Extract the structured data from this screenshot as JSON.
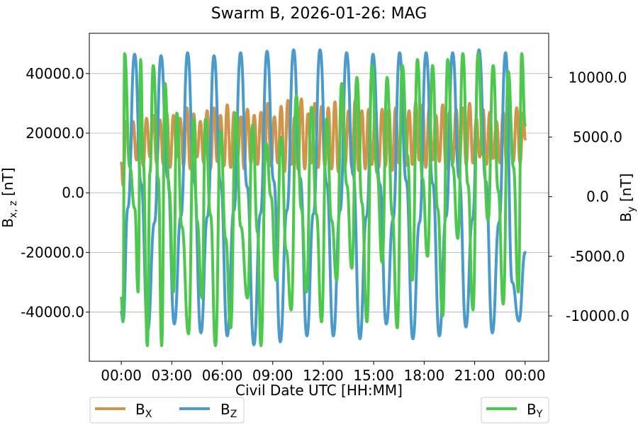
{
  "chart_data": {
    "type": "line",
    "title": "Swarm B, 2026-01-26: MAG",
    "xlabel": "Civil Date UTC [HH:MM]",
    "ylabel_left": {
      "main": "B",
      "sub": "x, z",
      "unit": " [nT]"
    },
    "ylabel_right": {
      "main": "B",
      "sub": "y",
      "unit": " [nT]"
    },
    "x_range_hours": [
      -1.9,
      25.4
    ],
    "x_ticks": [
      {
        "value": 0,
        "label": "00:00"
      },
      {
        "value": 3,
        "label": "03:00"
      },
      {
        "value": 6,
        "label": "06:00"
      },
      {
        "value": 9,
        "label": "09:00"
      },
      {
        "value": 12,
        "label": "12:00"
      },
      {
        "value": 15,
        "label": "15:00"
      },
      {
        "value": 18,
        "label": "18:00"
      },
      {
        "value": 21,
        "label": "21:00"
      },
      {
        "value": 24,
        "label": "00:00"
      }
    ],
    "ylim_left": [
      -56500,
      53500
    ],
    "y_ticks_left": [
      {
        "value": 40000,
        "label": "40000.0"
      },
      {
        "value": 20000,
        "label": "20000.0"
      },
      {
        "value": 0,
        "label": "0.0"
      },
      {
        "value": -20000,
        "label": "-20000.0"
      },
      {
        "value": -40000,
        "label": "-40000.0"
      }
    ],
    "ylim_right": [
      -13800,
      13700
    ],
    "y_ticks_right": [
      {
        "value": 10000,
        "label": "10000.0"
      },
      {
        "value": 5000,
        "label": "5000.0"
      },
      {
        "value": 0,
        "label": "0.0"
      },
      {
        "value": -5000,
        "label": "-5000.0"
      },
      {
        "value": -10000,
        "label": "-10000.0"
      }
    ],
    "grid": "horizontal",
    "orbit_period_hours": 1.575,
    "series": [
      {
        "name": "B_X",
        "label_main": "B",
        "label_sub": "X",
        "axis": "left",
        "color": "#d0944a",
        "note": "oscillates twice per orbit between roughly 8000 and 30000 nT with dips toward 0 nT",
        "x": [
          0,
          0.1,
          0.3,
          0.5,
          0.7,
          0.9,
          1.1,
          1.3,
          1.5,
          1.7,
          1.9,
          2.1,
          2.3,
          2.5,
          2.7,
          2.9,
          3.1,
          3.3,
          3.5,
          3.7,
          3.9,
          4.1,
          4.3,
          4.5,
          4.7,
          4.9,
          5.1,
          5.3,
          5.5,
          5.7,
          5.9,
          6.1,
          6.3,
          6.5,
          6.7,
          6.9,
          7.1,
          7.3,
          7.5,
          7.7,
          7.9,
          8.1,
          8.3,
          8.5,
          8.7,
          8.9,
          9.1,
          9.3,
          9.5,
          9.7,
          9.9,
          10.1,
          10.3,
          10.5,
          10.7,
          10.9,
          11.1,
          11.3,
          11.5,
          11.7,
          11.9,
          12.1,
          12.3,
          12.5,
          12.7,
          12.9,
          13.1,
          13.3,
          13.5,
          13.7,
          13.9,
          14.1,
          14.3,
          14.5,
          14.7,
          14.9,
          15.1,
          15.3,
          15.5,
          15.7,
          15.9,
          16.1,
          16.3,
          16.5,
          16.7,
          16.9,
          17.1,
          17.3,
          17.5,
          17.7,
          17.9,
          18.1,
          18.3,
          18.5,
          18.7,
          18.9,
          19.1,
          19.3,
          19.5,
          19.7,
          19.9,
          20.1,
          20.3,
          20.5,
          20.7,
          20.9,
          21.1,
          21.3,
          21.5,
          21.7,
          21.9,
          22.1,
          22.3,
          22.5,
          22.7,
          22.9,
          23.1,
          23.3,
          23.5,
          23.7,
          23.9,
          24.0
        ],
        "y": [
          10000,
          2500,
          24000,
          10500,
          24000,
          11000,
          28000,
          9000,
          25000,
          12000,
          26000,
          10000,
          24500,
          9500,
          27000,
          8500,
          26000,
          12000,
          25000,
          9000,
          28500,
          8000,
          26500,
          12000,
          24000,
          10000,
          27500,
          8000,
          28500,
          10500,
          26000,
          9000,
          29500,
          8500,
          27000,
          11000,
          25500,
          8000,
          28000,
          10000,
          26000,
          9500,
          27000,
          9000,
          30000,
          9000,
          25500,
          10000,
          29000,
          7000,
          31000,
          9500,
          25500,
          8000,
          31500,
          8000,
          26500,
          10000,
          30000,
          8500,
          29000,
          9000,
          28500,
          8000,
          30500,
          7000,
          30000,
          9000,
          27500,
          8500,
          31000,
          7500,
          27500,
          8000,
          28000,
          9500,
          29500,
          8500,
          28000,
          9000,
          28000,
          7500,
          28500,
          10000,
          31500,
          9000,
          27500,
          9500,
          30500,
          11000,
          29500,
          8500,
          28500,
          11000,
          26000,
          10500,
          29500,
          8000,
          27000,
          10000,
          28000,
          11000,
          28500,
          9500,
          30000,
          10000,
          25000,
          12000,
          28000,
          9500,
          27000,
          11500,
          24000,
          10000,
          27000,
          9500,
          25500,
          10500,
          28500,
          10000,
          27000,
          18000
        ]
      },
      {
        "name": "B_Z",
        "label_main": "B",
        "label_sub": "Z",
        "axis": "left",
        "color": "#4a9acb",
        "note": "one cycle per orbit (~1.575 h), peaks about +47000 nT, troughs -44000 to -52000 nT",
        "x": [
          0.0,
          0.1,
          0.39,
          0.79,
          1.18,
          1.57,
          1.97,
          2.36,
          2.76,
          3.15,
          3.54,
          3.94,
          4.33,
          4.73,
          5.12,
          5.51,
          5.91,
          6.3,
          6.69,
          7.09,
          7.48,
          7.88,
          8.27,
          8.66,
          9.06,
          9.45,
          9.84,
          10.24,
          10.63,
          11.03,
          11.42,
          11.81,
          12.21,
          12.6,
          13.0,
          13.39,
          13.78,
          14.18,
          14.57,
          14.96,
          15.36,
          15.75,
          16.15,
          16.54,
          16.93,
          17.33,
          17.72,
          18.11,
          18.51,
          18.9,
          19.3,
          19.69,
          20.08,
          20.48,
          20.87,
          21.26,
          21.66,
          22.05,
          22.45,
          22.84,
          23.23,
          23.63,
          24.0
        ],
        "y": [
          -40000,
          -43000,
          -5000,
          46500,
          3000,
          -46000,
          -10000,
          46000,
          5000,
          -44000,
          -8000,
          47000,
          4000,
          -47000,
          -8000,
          46000,
          3000,
          -48000,
          -6000,
          47000,
          2000,
          -51000,
          -7000,
          47500,
          4000,
          -50000,
          -6000,
          48000,
          5000,
          -48000,
          -7000,
          48000,
          3000,
          -48000,
          -6000,
          47000,
          6000,
          -49000,
          -8000,
          46500,
          3000,
          -44000,
          -9000,
          47000,
          4000,
          -49000,
          -10000,
          47000,
          3000,
          -48000,
          -8000,
          47000,
          5000,
          -45000,
          -9000,
          48000,
          4000,
          -47000,
          -10000,
          47000,
          -30000,
          -43000,
          -20000
        ]
      },
      {
        "name": "B_Y",
        "label_main": "B",
        "label_sub": "Y",
        "axis": "right",
        "color": "#4cc84c",
        "note": "highly variable, spikes to about +12000 nT and -12500 nT near polar passes",
        "x": [
          0.0,
          0.1,
          0.2,
          0.5,
          0.8,
          1.0,
          1.15,
          1.3,
          1.55,
          1.7,
          1.9,
          2.2,
          2.4,
          2.6,
          2.85,
          3.1,
          3.3,
          3.6,
          4.0,
          4.3,
          4.5,
          4.8,
          5.0,
          5.3,
          5.6,
          5.9,
          6.2,
          6.5,
          6.8,
          7.1,
          7.5,
          7.8,
          8.1,
          8.3,
          8.6,
          8.9,
          9.2,
          9.5,
          9.8,
          10.1,
          10.4,
          10.7,
          11.0,
          11.3,
          11.6,
          11.9,
          12.2,
          12.5,
          12.8,
          13.1,
          13.4,
          13.7,
          14.0,
          14.3,
          14.6,
          14.9,
          15.2,
          15.5,
          15.8,
          16.1,
          16.4,
          16.7,
          17.0,
          17.3,
          17.6,
          17.9,
          18.2,
          18.5,
          18.8,
          19.1,
          19.4,
          19.7,
          20.0,
          20.3,
          20.6,
          20.9,
          21.2,
          21.5,
          21.8,
          22.1,
          22.4,
          22.7,
          23.0,
          23.3,
          23.6,
          23.8,
          24.0
        ],
        "y": [
          -8500,
          -10500,
          12000,
          2500,
          -1000,
          -8000,
          11500,
          3000,
          -12500,
          2000,
          11000,
          1500,
          -12500,
          9500,
          500,
          -8000,
          7000,
          -2500,
          -11500,
          6500,
          -2000,
          -8500,
          6500,
          -1500,
          -12500,
          5500,
          -3500,
          -11000,
          7000,
          -2500,
          -8500,
          6000,
          -3000,
          -12500,
          4500,
          0,
          -7000,
          5000,
          -4500,
          -9500,
          8500,
          -1000,
          -8000,
          7500,
          -1500,
          -10500,
          6500,
          -2000,
          -7000,
          9500,
          1000,
          -6000,
          10000,
          -500,
          -10500,
          11000,
          2000,
          -5500,
          10000,
          -1500,
          -11000,
          11000,
          3500,
          -7000,
          11500,
          1500,
          -5000,
          11000,
          -1000,
          -10000,
          11500,
          2500,
          -3500,
          12000,
          1000,
          -9500,
          12000,
          3500,
          -2000,
          11000,
          500,
          -9000,
          10500,
          2500,
          -8000,
          12000,
          6000
        ]
      }
    ],
    "legend_left": [
      "B_X",
      "B_Z"
    ],
    "legend_right": [
      "B_Y"
    ]
  }
}
